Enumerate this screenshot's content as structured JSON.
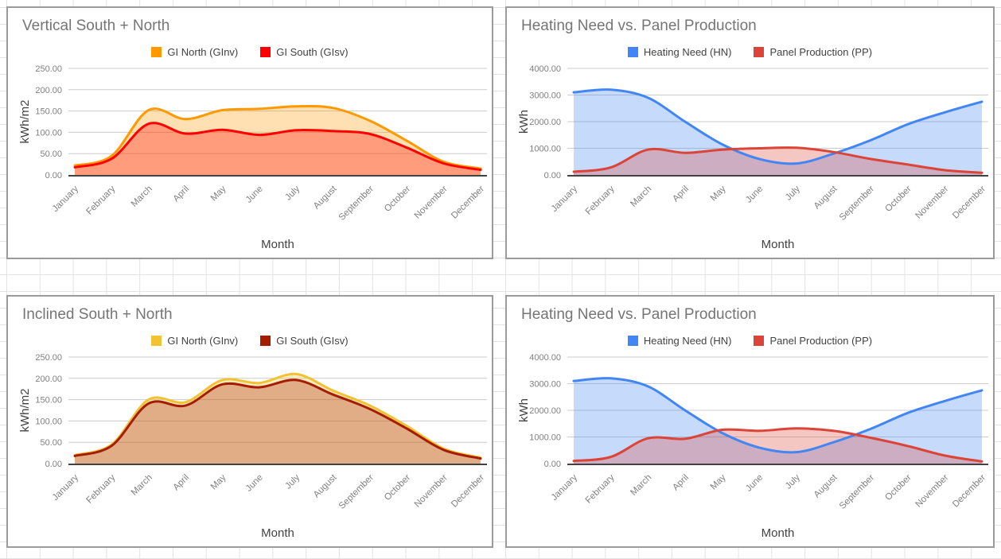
{
  "app": {
    "background": "#ffffff",
    "sheet_grid_color": "#e3e3e3"
  },
  "text_colors": {
    "title": "#757575",
    "legend": "#424242",
    "ticks": "#808080",
    "axis_titles": "#424242"
  },
  "chart_data": [
    {
      "type": "area",
      "title": "Vertical South + North",
      "xlabel": "Month",
      "ylabel": "kWh/m2",
      "ylim": [
        0,
        250
      ],
      "grid": true,
      "legend_position": "top",
      "y_ticks": [
        0,
        50,
        100,
        150,
        200,
        250
      ],
      "y_tick_labels": [
        "0.00",
        "50.00",
        "100.00",
        "150.00",
        "200.00",
        "250.00"
      ],
      "categories": [
        "January",
        "February",
        "March",
        "April",
        "May",
        "June",
        "July",
        "August",
        "September",
        "October",
        "November",
        "December"
      ],
      "series": [
        {
          "name": "GI North (GInv)",
          "color": "#FF9900",
          "fill_opacity": 0.3,
          "values": [
            22,
            45,
            152,
            131,
            152,
            155,
            161,
            157,
            127,
            80,
            31,
            15
          ]
        },
        {
          "name": "GI South (GIsv)",
          "color": "#FF0000",
          "fill_opacity": 0.3,
          "values": [
            18,
            38,
            120,
            97,
            106,
            94,
            105,
            103,
            96,
            64,
            27,
            12
          ]
        }
      ]
    },
    {
      "type": "area",
      "title": "Heating Need vs. Panel Production",
      "xlabel": "Month",
      "ylabel": "kWh",
      "ylim": [
        0,
        4000
      ],
      "grid": true,
      "legend_position": "top",
      "y_ticks": [
        0,
        1000,
        2000,
        3000,
        4000
      ],
      "y_tick_labels": [
        "0.00",
        "1000.00",
        "2000.00",
        "3000.00",
        "4000.00"
      ],
      "categories": [
        "January",
        "February",
        "March",
        "April",
        "May",
        "June",
        "July",
        "August",
        "September",
        "October",
        "November",
        "December"
      ],
      "series": [
        {
          "name": "Heating Need (HN)",
          "color": "#4285F4",
          "fill_opacity": 0.3,
          "values": [
            3100,
            3200,
            2900,
            2000,
            1150,
            600,
            430,
            800,
            1300,
            1900,
            2350,
            2750
          ]
        },
        {
          "name": "Panel Production (PP)",
          "color": "#DB4437",
          "fill_opacity": 0.3,
          "values": [
            120,
            280,
            950,
            830,
            950,
            1000,
            1020,
            860,
            600,
            390,
            180,
            80
          ]
        }
      ]
    },
    {
      "type": "area",
      "title": "Inclined South + North",
      "xlabel": "Month",
      "ylabel": "kWh/m2",
      "ylim": [
        0,
        250
      ],
      "grid": true,
      "legend_position": "top",
      "y_ticks": [
        0,
        50,
        100,
        150,
        200,
        250
      ],
      "y_tick_labels": [
        "0.00",
        "50.00",
        "100.00",
        "150.00",
        "200.00",
        "250.00"
      ],
      "categories": [
        "January",
        "February",
        "March",
        "April",
        "May",
        "June",
        "July",
        "August",
        "September",
        "October",
        "November",
        "December"
      ],
      "series": [
        {
          "name": "GI North (GInv)",
          "color": "#F1C232",
          "fill_opacity": 0.3,
          "values": [
            20,
            45,
            150,
            144,
            196,
            189,
            210,
            171,
            136,
            88,
            35,
            14
          ]
        },
        {
          "name": "GI South (GIsv)",
          "color": "#A61C00",
          "fill_opacity": 0.3,
          "values": [
            18,
            42,
            141,
            136,
            186,
            179,
            196,
            162,
            128,
            82,
            32,
            12
          ]
        }
      ]
    },
    {
      "type": "area",
      "title": "Heating Need vs. Panel Production",
      "xlabel": "Month",
      "ylabel": "kWh",
      "ylim": [
        0,
        4000
      ],
      "grid": true,
      "legend_position": "top",
      "y_ticks": [
        0,
        1000,
        2000,
        3000,
        4000
      ],
      "y_tick_labels": [
        "0.00",
        "1000.00",
        "2000.00",
        "3000.00",
        "4000.00"
      ],
      "categories": [
        "January",
        "February",
        "March",
        "April",
        "May",
        "June",
        "July",
        "August",
        "September",
        "October",
        "November",
        "December"
      ],
      "series": [
        {
          "name": "Heating Need (HN)",
          "color": "#4285F4",
          "fill_opacity": 0.3,
          "values": [
            3100,
            3200,
            2900,
            2000,
            1150,
            600,
            430,
            800,
            1300,
            1900,
            2350,
            2750
          ]
        },
        {
          "name": "Panel Production (PP)",
          "color": "#DB4437",
          "fill_opacity": 0.3,
          "values": [
            100,
            250,
            950,
            930,
            1270,
            1230,
            1320,
            1230,
            970,
            660,
            300,
            80
          ]
        }
      ]
    }
  ]
}
